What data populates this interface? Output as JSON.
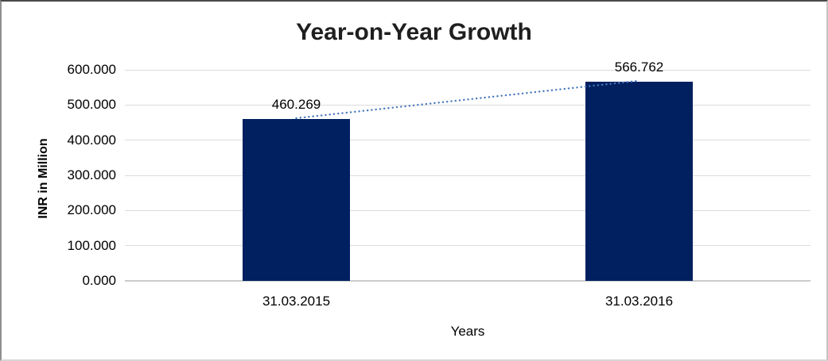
{
  "chart_data": {
    "type": "bar",
    "title": "Year-on-Year Growth",
    "xlabel": "Years",
    "ylabel": "INR in Million",
    "categories": [
      "31.03.2015",
      "31.03.2016"
    ],
    "values": [
      460.269,
      566.762
    ],
    "value_labels": [
      "460.269",
      "566.762"
    ],
    "ylim": [
      0,
      600
    ],
    "ytick_step": 100,
    "ytick_labels": [
      "0.000",
      "100.000",
      "200.000",
      "300.000",
      "400.000",
      "500.000",
      "600.000"
    ],
    "grid": "horizontal-only",
    "legend": "none",
    "trendline": {
      "type": "linear",
      "style": "dotted",
      "color": "#4878BC"
    },
    "colors": {
      "bar": "#002060",
      "gridline": "#DCDCDC",
      "axis_line": "#CBCBCB",
      "title_text": "#1F1F1F",
      "label_text": "#000000",
      "background": "#FFFFFF"
    }
  }
}
